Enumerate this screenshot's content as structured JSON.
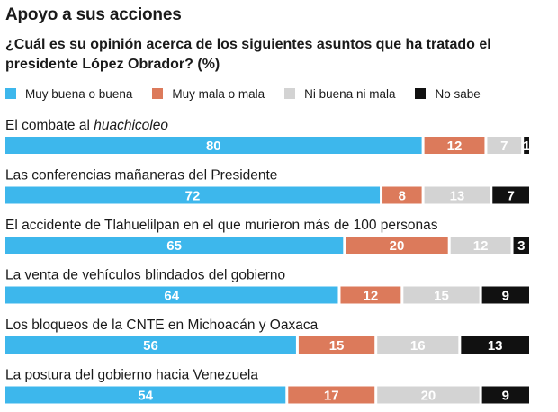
{
  "header": {
    "title": "Apoyo a sus acciones",
    "subtitle": "¿Cuál es su opinión acerca de los siguientes asuntos que ha tratado el presidente López Obrador? (%)"
  },
  "chart_data": {
    "type": "bar",
    "orientation": "horizontal",
    "stacked": true,
    "legend_placement": "top",
    "grid": false,
    "xlim": [
      0,
      100
    ],
    "categories": [
      {
        "text": "El combate al ",
        "emphasis": "huachicoleo"
      },
      {
        "text": "Las conferencias mañaneras del Presidente",
        "emphasis": ""
      },
      {
        "text": "El accidente de Tlahuelilpan en el que murieron más de 100 personas",
        "emphasis": ""
      },
      {
        "text": "La venta de vehículos blindados del gobierno",
        "emphasis": ""
      },
      {
        "text": "Los bloqueos de la CNTE en Michoacán y Oaxaca",
        "emphasis": ""
      },
      {
        "text": "La postura del gobierno hacia Venezuela",
        "emphasis": ""
      }
    ],
    "series": [
      {
        "name": "Muy buena o buena",
        "color": "#3db7ec",
        "label_color": "#ffffff",
        "values": [
          80,
          72,
          65,
          64,
          56,
          54
        ]
      },
      {
        "name": "Muy mala o mala",
        "color": "#dc7a5b",
        "label_color": "#ffffff",
        "values": [
          12,
          8,
          20,
          12,
          15,
          17
        ]
      },
      {
        "name": "Ni buena ni mala",
        "color": "#d3d3d3",
        "label_color": "#ffffff",
        "values": [
          7,
          13,
          12,
          15,
          16,
          20
        ]
      },
      {
        "name": "No sabe",
        "color": "#111111",
        "label_color": "#ffffff",
        "values": [
          1,
          7,
          3,
          9,
          13,
          9
        ]
      }
    ]
  }
}
